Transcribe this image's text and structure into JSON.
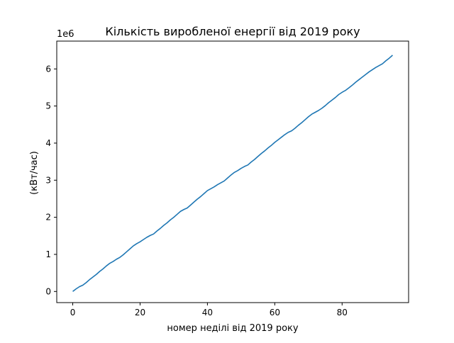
{
  "chart_data": {
    "type": "line",
    "title": "Кількість виробленої енергії від 2019 року",
    "xlabel": "номер неділі від 2019 року",
    "ylabel": "(кВт/час)",
    "y_offset_label": "1e6",
    "xlim": [
      -4.75,
      99.75
    ],
    "ylim": [
      -300000,
      6750000
    ],
    "x_ticks": [
      0,
      20,
      40,
      60,
      80
    ],
    "x_tick_labels": [
      "0",
      "20",
      "40",
      "60",
      "80"
    ],
    "y_ticks": [
      0,
      1000000,
      2000000,
      3000000,
      4000000,
      5000000,
      6000000
    ],
    "y_tick_labels": [
      "0",
      "1",
      "2",
      "3",
      "4",
      "5",
      "6"
    ],
    "grid": false,
    "line_color": "#1f77b4",
    "series": [
      {
        "x": [
          0,
          1,
          2,
          3,
          4,
          5,
          6,
          7,
          8,
          9,
          10,
          11,
          12,
          13,
          14,
          15,
          16,
          17,
          18,
          19,
          20,
          21,
          22,
          23,
          24,
          25,
          26,
          27,
          28,
          29,
          30,
          31,
          32,
          33,
          34,
          35,
          36,
          37,
          38,
          39,
          40,
          41,
          42,
          43,
          44,
          45,
          46,
          47,
          48,
          49,
          50,
          51,
          52,
          53,
          54,
          55,
          56,
          57,
          58,
          59,
          60,
          61,
          62,
          63,
          64,
          65,
          66,
          67,
          68,
          69,
          70,
          71,
          72,
          73,
          74,
          75,
          76,
          77,
          78,
          79,
          80,
          81,
          82,
          83,
          84,
          85,
          86,
          87,
          88,
          89,
          90,
          91,
          92,
          93,
          94,
          95
        ],
        "values": [
          0,
          70000,
          130000,
          170000,
          240000,
          320000,
          390000,
          460000,
          540000,
          610000,
          690000,
          760000,
          810000,
          870000,
          920000,
          990000,
          1070000,
          1150000,
          1230000,
          1290000,
          1340000,
          1400000,
          1460000,
          1510000,
          1550000,
          1630000,
          1700000,
          1780000,
          1850000,
          1930000,
          2000000,
          2080000,
          2160000,
          2210000,
          2250000,
          2330000,
          2410000,
          2490000,
          2560000,
          2640000,
          2720000,
          2770000,
          2820000,
          2880000,
          2930000,
          2980000,
          3060000,
          3140000,
          3210000,
          3260000,
          3320000,
          3370000,
          3410000,
          3490000,
          3560000,
          3640000,
          3720000,
          3790000,
          3870000,
          3940000,
          4020000,
          4090000,
          4160000,
          4230000,
          4290000,
          4330000,
          4400000,
          4480000,
          4550000,
          4630000,
          4710000,
          4780000,
          4830000,
          4880000,
          4940000,
          5010000,
          5090000,
          5160000,
          5230000,
          5310000,
          5370000,
          5420000,
          5490000,
          5560000,
          5640000,
          5710000,
          5780000,
          5850000,
          5920000,
          5980000,
          6040000,
          6090000,
          6140000,
          6220000,
          6290000,
          6370000
        ]
      }
    ]
  }
}
